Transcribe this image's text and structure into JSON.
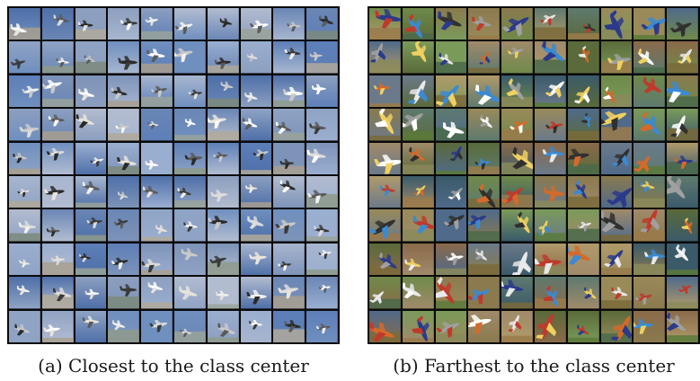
{
  "panels": [
    {
      "id": "a",
      "caption": "(a) Closest to the class center",
      "grid": {
        "rows": 10,
        "cols": 10
      },
      "palette": {
        "sky": [
          "#8fa3c4",
          "#6f8fbf",
          "#9aaed0",
          "#5d7fb8",
          "#7d93b8",
          "#a7b6cf",
          "#4e6fa8",
          "#8c9fbf",
          "#b2bcd0",
          "#6a86b5"
        ],
        "ground": [
          "#9aa39a",
          "#7d8a7b",
          "#a89f8f",
          "#8e9a8b",
          "#b0a99a"
        ],
        "plane": [
          "#f2f2f2",
          "#dcdcdc",
          "#3a3a3a",
          "#e8e4dc",
          "#5a5a5a",
          "#c9c9c9",
          "#ffffff",
          "#2a2a2a"
        ]
      }
    },
    {
      "id": "b",
      "caption": "(b) Farthest to the class center",
      "grid": {
        "rows": 10,
        "cols": 10
      },
      "palette": {
        "sky": [
          "#6f8a4a",
          "#8a7a4e",
          "#5e7a6f",
          "#9a8a5a",
          "#4f6a8a",
          "#7a9a5a",
          "#a08a6a",
          "#5a6a3a",
          "#8a6a4a",
          "#6a7a8a",
          "#b09a6a",
          "#3a5a6a"
        ],
        "ground": [
          "#5a7a3a",
          "#7a6a3a",
          "#8a8a5a",
          "#4a6a4a",
          "#9a7a4a"
        ],
        "plane": [
          "#e8e8e8",
          "#c0392b",
          "#2b3a8a",
          "#f0d060",
          "#ffffff",
          "#303030",
          "#d46a2a",
          "#3a8ad4",
          "#a0a0a0"
        ]
      }
    }
  ]
}
